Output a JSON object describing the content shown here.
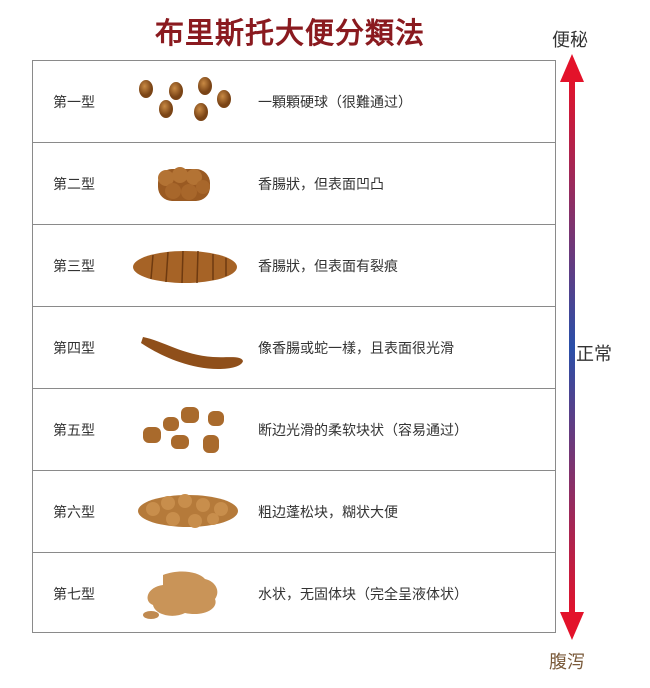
{
  "title": "布里斯托大便分類法",
  "axis": {
    "top": "便秘",
    "middle": "正常",
    "bottom": "腹泻",
    "top_color": "#e3122a",
    "middle_color": "#2a4fa8",
    "bottom_color": "#e3122a"
  },
  "rows": [
    {
      "type": "第一型",
      "desc": "一顆顆硬球（很難通过）"
    },
    {
      "type": "第二型",
      "desc": "香腸狀，但表面凹凸"
    },
    {
      "type": "第三型",
      "desc": "香腸狀，但表面有裂痕"
    },
    {
      "type": "第四型",
      "desc": "像香腸或蛇一樣，且表面很光滑"
    },
    {
      "type": "第五型",
      "desc": "断边光滑的柔软块状（容易通过）"
    },
    {
      "type": "第六型",
      "desc": "粗边蓬松块，糊状大便"
    },
    {
      "type": "第七型",
      "desc": "水状，无固体块（完全呈液体状）"
    }
  ],
  "colors": {
    "title": "#8a1a1f",
    "stool": "#a8692a"
  }
}
